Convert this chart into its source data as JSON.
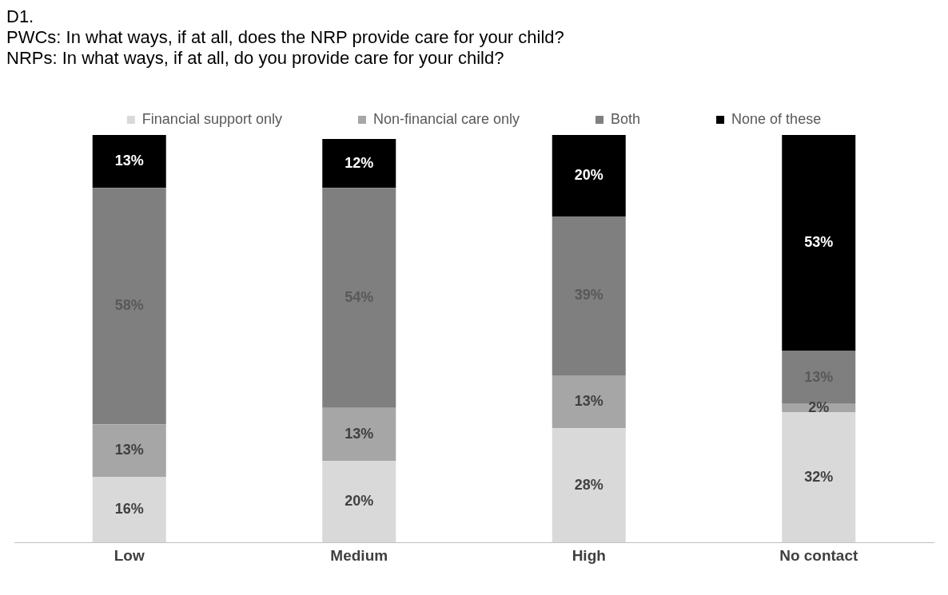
{
  "chart_data": {
    "type": "bar",
    "title": "D1.",
    "subtitle": "PWCs: In what ways, if at all, does the NRP provide care for your child?\nNRPs: In what ways, if at all, do you provide care for your child?",
    "categories": [
      "Low",
      "Medium",
      "High",
      "No contact"
    ],
    "stacked": true,
    "legend": "top",
    "grid": false,
    "tick_labels": "x",
    "series": [
      {
        "name": "Financial support only",
        "color": "#d9d9d9",
        "values": [
          16,
          20,
          28,
          32
        ],
        "value_labels": [
          "16%",
          "20%",
          "28%",
          "32%"
        ]
      },
      {
        "name": "Non-financial care only",
        "color": "#a6a6a6",
        "values": [
          13,
          13,
          13,
          2
        ],
        "value_labels": [
          "13%",
          "13%",
          "13%",
          "2%"
        ]
      },
      {
        "name": "Both",
        "color": "#7f7f7f",
        "values": [
          58,
          54,
          39,
          13
        ],
        "value_labels": [
          "58%",
          "54%",
          "39%",
          "13%"
        ]
      },
      {
        "name": "None of these",
        "color": "#000000",
        "values": [
          13,
          12,
          20,
          53
        ],
        "value_labels": [
          "13%",
          "12%",
          "20%",
          "53%"
        ]
      }
    ]
  }
}
